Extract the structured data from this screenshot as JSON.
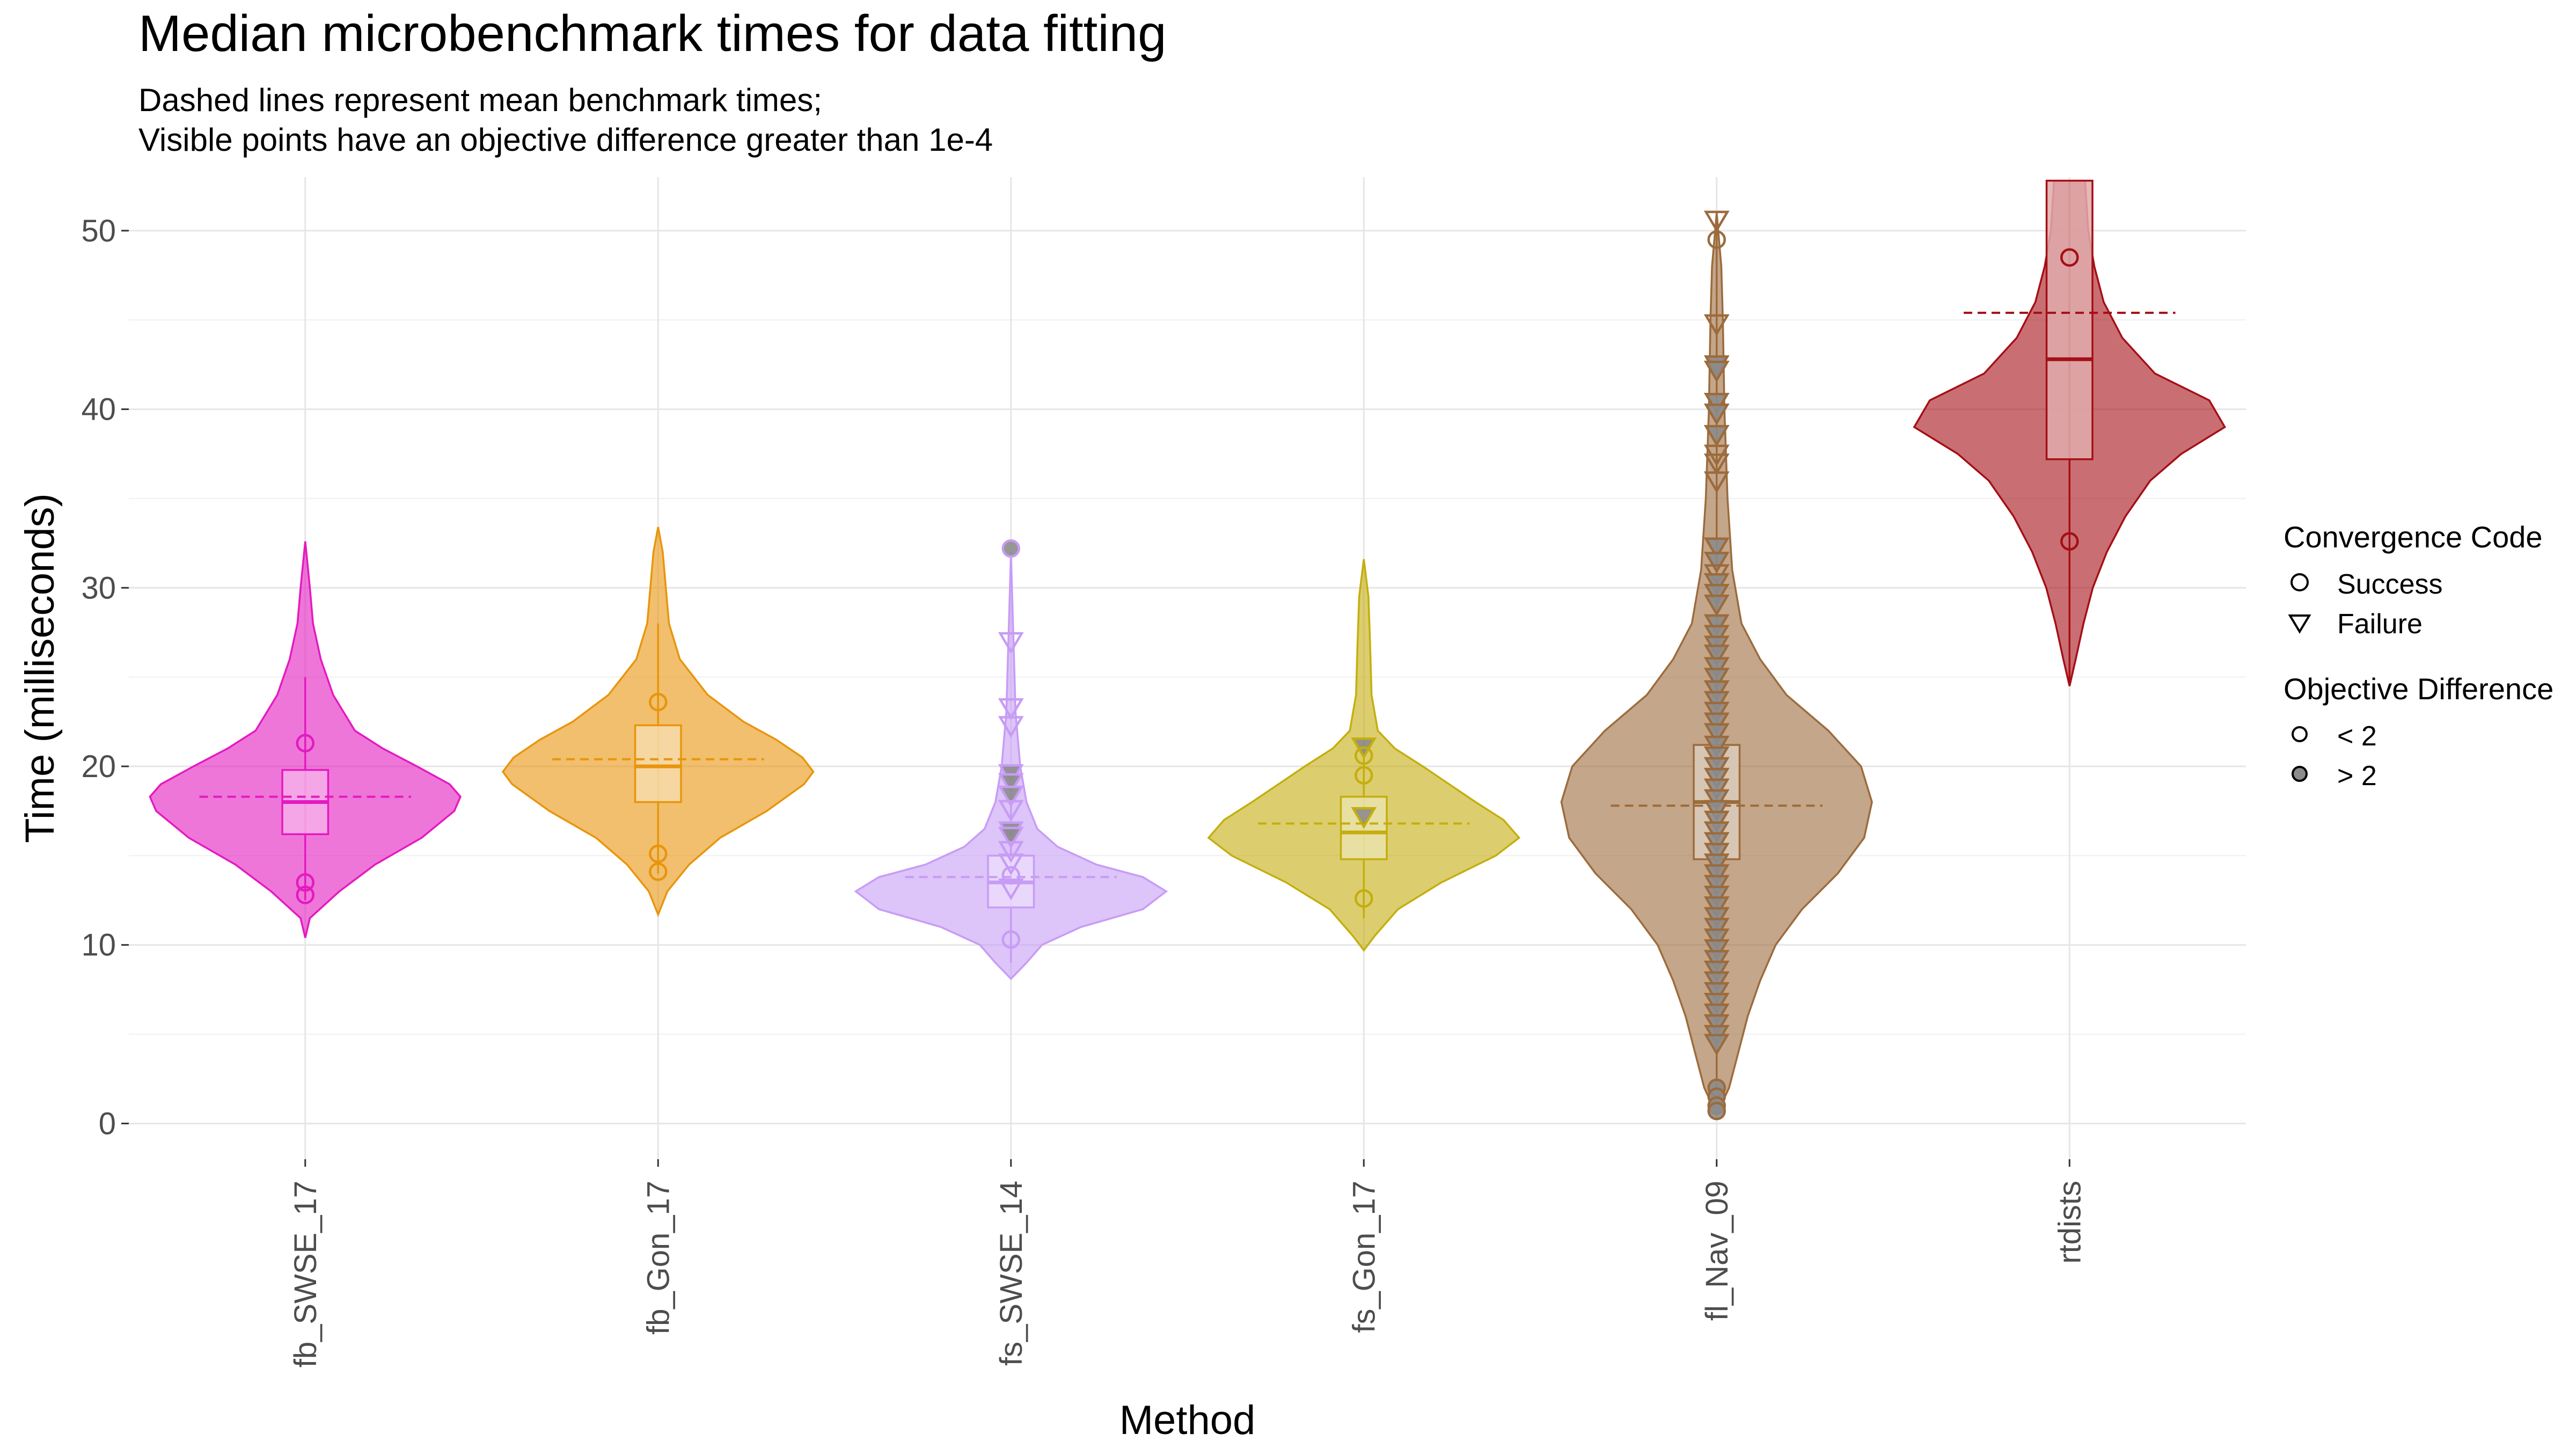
{
  "chart_data": {
    "type": "violin",
    "title": "Median microbenchmark times for data fitting",
    "subtitle_lines": [
      "Dashed lines represent mean benchmark times;",
      "Visible points have an objective difference greater than 1e-4"
    ],
    "xlabel": "Method",
    "ylabel": "Time (milliseconds)",
    "ylim": [
      -2,
      53
    ],
    "yticks": [
      0,
      10,
      20,
      30,
      40,
      50
    ],
    "grid": true,
    "legend_position": "right",
    "categories": [
      "fb_SWSE_17",
      "fb_Gon_17",
      "fs_SWSE_14",
      "fs_Gon_17",
      "fl_Nav_09",
      "rtdists"
    ],
    "colors": [
      "#E41AC0",
      "#E8950C",
      "#C79CF5",
      "#C4AE0E",
      "#9C6B3C",
      "#A50F15"
    ],
    "series": [
      {
        "name": "fb_SWSE_17",
        "median": 18.0,
        "q1": 16.2,
        "q3": 19.8,
        "whisker_low": 12.5,
        "whisker_high": 25.0,
        "mean": 18.3,
        "violin": [
          [
            10.4,
            0
          ],
          [
            11.5,
            0.03
          ],
          [
            13,
            0.22
          ],
          [
            14.5,
            0.45
          ],
          [
            16,
            0.75
          ],
          [
            17.5,
            0.96
          ],
          [
            18.3,
            1.0
          ],
          [
            19,
            0.93
          ],
          [
            20,
            0.72
          ],
          [
            21,
            0.5
          ],
          [
            22,
            0.32
          ],
          [
            24,
            0.18
          ],
          [
            26,
            0.1
          ],
          [
            28,
            0.05
          ],
          [
            30,
            0.03
          ],
          [
            32.6,
            0
          ]
        ],
        "points": [
          {
            "y": 21.3,
            "shape": "circle",
            "diff": "< 2"
          },
          {
            "y": 13.5,
            "shape": "circle",
            "diff": "< 2"
          },
          {
            "y": 12.8,
            "shape": "circle",
            "diff": "< 2"
          }
        ]
      },
      {
        "name": "fb_Gon_17",
        "median": 20.0,
        "q1": 18.0,
        "q3": 22.3,
        "whisker_low": 14.0,
        "whisker_high": 28.0,
        "mean": 20.4,
        "violin": [
          [
            11.7,
            0
          ],
          [
            13,
            0.06
          ],
          [
            14.5,
            0.2
          ],
          [
            16,
            0.4
          ],
          [
            17.5,
            0.7
          ],
          [
            19,
            0.94
          ],
          [
            19.7,
            1.0
          ],
          [
            20.5,
            0.93
          ],
          [
            21.5,
            0.76
          ],
          [
            22.5,
            0.55
          ],
          [
            24,
            0.32
          ],
          [
            26,
            0.14
          ],
          [
            28,
            0.07
          ],
          [
            30,
            0.05
          ],
          [
            32,
            0.03
          ],
          [
            33.4,
            0
          ]
        ],
        "points": [
          {
            "y": 23.6,
            "shape": "circle",
            "diff": "< 2"
          },
          {
            "y": 15.1,
            "shape": "circle",
            "diff": "< 2"
          },
          {
            "y": 14.1,
            "shape": "circle",
            "diff": "< 2"
          }
        ]
      },
      {
        "name": "fs_SWSE_14",
        "median": 13.5,
        "q1": 12.1,
        "q3": 15.0,
        "whisker_low": 9.0,
        "whisker_high": 19.5,
        "mean": 13.8,
        "violin": [
          [
            8.1,
            0
          ],
          [
            9,
            0.1
          ],
          [
            10,
            0.2
          ],
          [
            11,
            0.45
          ],
          [
            12,
            0.85
          ],
          [
            13,
            1.0
          ],
          [
            13.8,
            0.85
          ],
          [
            14.5,
            0.55
          ],
          [
            15.5,
            0.3
          ],
          [
            16.5,
            0.17
          ],
          [
            18,
            0.1
          ],
          [
            20,
            0.06
          ],
          [
            23,
            0.03
          ],
          [
            26,
            0.02
          ],
          [
            29,
            0.01
          ],
          [
            32,
            0
          ]
        ],
        "points": [
          {
            "y": 32.2,
            "shape": "circle",
            "diff": "> 2"
          },
          {
            "y": 27.0,
            "shape": "triangle",
            "diff": "< 2"
          },
          {
            "y": 23.3,
            "shape": "triangle",
            "diff": "< 2"
          },
          {
            "y": 22.3,
            "shape": "triangle",
            "diff": "< 2"
          },
          {
            "y": 19.6,
            "shape": "triangle",
            "diff": "> 2"
          },
          {
            "y": 19.1,
            "shape": "triangle",
            "diff": "> 2"
          },
          {
            "y": 18.4,
            "shape": "triangle",
            "diff": "> 2"
          },
          {
            "y": 17.6,
            "shape": "triangle",
            "diff": "< 2"
          },
          {
            "y": 16.4,
            "shape": "triangle",
            "diff": "> 2"
          },
          {
            "y": 16.1,
            "shape": "triangle",
            "diff": "> 2"
          },
          {
            "y": 15.3,
            "shape": "triangle",
            "diff": "< 2"
          },
          {
            "y": 14.6,
            "shape": "triangle",
            "diff": "< 2"
          },
          {
            "y": 13.9,
            "shape": "circle",
            "diff": "< 2"
          },
          {
            "y": 13.2,
            "shape": "triangle",
            "diff": "< 2"
          },
          {
            "y": 10.3,
            "shape": "circle",
            "diff": "< 2"
          }
        ]
      },
      {
        "name": "fs_Gon_17",
        "median": 16.3,
        "q1": 14.8,
        "q3": 18.3,
        "whisker_low": 11.5,
        "whisker_high": 21.5,
        "mean": 16.8,
        "violin": [
          [
            9.7,
            0
          ],
          [
            10.5,
            0.07
          ],
          [
            12,
            0.22
          ],
          [
            13.5,
            0.5
          ],
          [
            15,
            0.85
          ],
          [
            16,
            1.0
          ],
          [
            17,
            0.9
          ],
          [
            18,
            0.72
          ],
          [
            19,
            0.55
          ],
          [
            20,
            0.38
          ],
          [
            21,
            0.2
          ],
          [
            22,
            0.09
          ],
          [
            24,
            0.05
          ],
          [
            27,
            0.04
          ],
          [
            29.5,
            0.03
          ],
          [
            31.6,
            0
          ]
        ],
        "points": [
          {
            "y": 21.1,
            "shape": "triangle",
            "diff": "> 2"
          },
          {
            "y": 20.6,
            "shape": "circle",
            "diff": "< 2"
          },
          {
            "y": 19.5,
            "shape": "circle",
            "diff": "< 2"
          },
          {
            "y": 17.2,
            "shape": "triangle",
            "diff": "> 2"
          },
          {
            "y": 12.6,
            "shape": "circle",
            "diff": "< 2"
          }
        ]
      },
      {
        "name": "fl_Nav_09",
        "median": 18.0,
        "q1": 14.8,
        "q3": 21.2,
        "whisker_low": 0.8,
        "whisker_high": 50.5,
        "mean": 17.8,
        "violin": [
          [
            0.5,
            0
          ],
          [
            2,
            0.08
          ],
          [
            4,
            0.14
          ],
          [
            6,
            0.2
          ],
          [
            8,
            0.28
          ],
          [
            10,
            0.38
          ],
          [
            12,
            0.55
          ],
          [
            14,
            0.78
          ],
          [
            16,
            0.95
          ],
          [
            18,
            1.0
          ],
          [
            20,
            0.93
          ],
          [
            22,
            0.72
          ],
          [
            24,
            0.45
          ],
          [
            26,
            0.28
          ],
          [
            28,
            0.16
          ],
          [
            31,
            0.1
          ],
          [
            35,
            0.07
          ],
          [
            40,
            0.05
          ],
          [
            45,
            0.04
          ],
          [
            48,
            0.03
          ],
          [
            51,
            0
          ]
        ],
        "points": [
          {
            "y": 50.6,
            "shape": "triangle",
            "diff": "< 2"
          },
          {
            "y": 49.5,
            "shape": "circle",
            "diff": "< 2"
          },
          {
            "y": 44.8,
            "shape": "triangle",
            "diff": "< 2"
          },
          {
            "y": 42.5,
            "shape": "triangle",
            "diff": "> 2"
          },
          {
            "y": 42.2,
            "shape": "triangle",
            "diff": "> 2"
          },
          {
            "y": 40.4,
            "shape": "triangle",
            "diff": "> 2"
          },
          {
            "y": 39.8,
            "shape": "triangle",
            "diff": "> 2"
          },
          {
            "y": 38.6,
            "shape": "triangle",
            "diff": "> 2"
          },
          {
            "y": 37.5,
            "shape": "triangle",
            "diff": "< 2"
          },
          {
            "y": 37.0,
            "shape": "triangle",
            "diff": "< 2"
          },
          {
            "y": 36.0,
            "shape": "triangle",
            "diff": "< 2"
          },
          {
            "y": 32.3,
            "shape": "triangle",
            "diff": "> 2"
          },
          {
            "y": 31.5,
            "shape": "triangle",
            "diff": "> 2"
          },
          {
            "y": 30.8,
            "shape": "triangle",
            "diff": "< 2"
          },
          {
            "y": 30.3,
            "shape": "triangle",
            "diff": "> 2"
          },
          {
            "y": 29.7,
            "shape": "triangle",
            "diff": "> 2"
          },
          {
            "y": 29.1,
            "shape": "triangle",
            "diff": "> 2"
          },
          {
            "y": 28.0,
            "shape": "triangle",
            "diff": "> 2"
          },
          {
            "y": 27.4,
            "shape": "triangle",
            "diff": "> 2"
          },
          {
            "y": 26.8,
            "shape": "triangle",
            "diff": "> 2"
          },
          {
            "y": 26.3,
            "shape": "triangle",
            "diff": "> 2"
          },
          {
            "y": 25.6,
            "shape": "triangle",
            "diff": "> 2"
          },
          {
            "y": 25.0,
            "shape": "triangle",
            "diff": "> 2"
          },
          {
            "y": 24.3,
            "shape": "triangle",
            "diff": "> 2"
          },
          {
            "y": 23.7,
            "shape": "triangle",
            "diff": "> 2"
          },
          {
            "y": 23.1,
            "shape": "triangle",
            "diff": "> 2"
          },
          {
            "y": 22.5,
            "shape": "triangle",
            "diff": "> 2"
          },
          {
            "y": 21.9,
            "shape": "triangle",
            "diff": "> 2"
          },
          {
            "y": 21.2,
            "shape": "triangle",
            "diff": "> 2"
          },
          {
            "y": 20.6,
            "shape": "triangle",
            "diff": "> 2"
          },
          {
            "y": 20.0,
            "shape": "triangle",
            "diff": "> 2"
          },
          {
            "y": 19.4,
            "shape": "triangle",
            "diff": "> 2"
          },
          {
            "y": 18.8,
            "shape": "triangle",
            "diff": "> 2"
          },
          {
            "y": 18.2,
            "shape": "triangle",
            "diff": "> 2"
          },
          {
            "y": 17.6,
            "shape": "triangle",
            "diff": "> 2"
          },
          {
            "y": 17.0,
            "shape": "triangle",
            "diff": "> 2"
          },
          {
            "y": 16.4,
            "shape": "triangle",
            "diff": "> 2"
          },
          {
            "y": 15.8,
            "shape": "triangle",
            "diff": "> 2"
          },
          {
            "y": 15.2,
            "shape": "triangle",
            "diff": "> 2"
          },
          {
            "y": 14.6,
            "shape": "triangle",
            "diff": "> 2"
          },
          {
            "y": 14.0,
            "shape": "triangle",
            "diff": "> 2"
          },
          {
            "y": 13.4,
            "shape": "triangle",
            "diff": "> 2"
          },
          {
            "y": 12.8,
            "shape": "triangle",
            "diff": "> 2"
          },
          {
            "y": 12.2,
            "shape": "triangle",
            "diff": "> 2"
          },
          {
            "y": 11.6,
            "shape": "triangle",
            "diff": "> 2"
          },
          {
            "y": 11.0,
            "shape": "triangle",
            "diff": "> 2"
          },
          {
            "y": 10.4,
            "shape": "triangle",
            "diff": "> 2"
          },
          {
            "y": 9.8,
            "shape": "triangle",
            "diff": "> 2"
          },
          {
            "y": 9.2,
            "shape": "triangle",
            "diff": "> 2"
          },
          {
            "y": 8.6,
            "shape": "triangle",
            "diff": "> 2"
          },
          {
            "y": 8.0,
            "shape": "triangle",
            "diff": "> 2"
          },
          {
            "y": 7.4,
            "shape": "triangle",
            "diff": "> 2"
          },
          {
            "y": 6.8,
            "shape": "triangle",
            "diff": "> 2"
          },
          {
            "y": 6.2,
            "shape": "triangle",
            "diff": "> 2"
          },
          {
            "y": 5.6,
            "shape": "triangle",
            "diff": "> 2"
          },
          {
            "y": 5.0,
            "shape": "triangle",
            "diff": "> 2"
          },
          {
            "y": 4.5,
            "shape": "triangle",
            "diff": "> 2"
          },
          {
            "y": 2.0,
            "shape": "circle",
            "diff": "> 2"
          },
          {
            "y": 1.5,
            "shape": "circle",
            "diff": "> 2"
          },
          {
            "y": 1.0,
            "shape": "circle",
            "diff": "> 2"
          },
          {
            "y": 0.7,
            "shape": "circle",
            "diff": "> 2"
          }
        ]
      },
      {
        "name": "rtdists",
        "median": 42.8,
        "q1": 37.2,
        "q3": 52.8,
        "whisker_low": 24.5,
        "whisker_high": 52.8,
        "mean": 45.4,
        "violin": [
          [
            24.5,
            0
          ],
          [
            26,
            0.04
          ],
          [
            28,
            0.09
          ],
          [
            30,
            0.15
          ],
          [
            32,
            0.24
          ],
          [
            34,
            0.36
          ],
          [
            36,
            0.52
          ],
          [
            37.5,
            0.72
          ],
          [
            39,
            1.0
          ],
          [
            40.5,
            0.9
          ],
          [
            42,
            0.55
          ],
          [
            44,
            0.34
          ],
          [
            46,
            0.22
          ],
          [
            48,
            0.16
          ],
          [
            50,
            0.12
          ],
          [
            52.8,
            0.1
          ]
        ],
        "points": [
          {
            "y": 48.5,
            "shape": "circle",
            "diff": "< 2"
          },
          {
            "y": 32.6,
            "shape": "circle",
            "diff": "< 2"
          }
        ]
      }
    ],
    "legend": {
      "convergence_title": "Convergence Code",
      "convergence_items": [
        {
          "label": "Success",
          "shape": "circle"
        },
        {
          "label": "Failure",
          "shape": "triangle"
        }
      ],
      "objdiff_title": "Objective Difference",
      "objdiff_items": [
        {
          "label": "< 2",
          "fill": "none"
        },
        {
          "label": "> 2",
          "fill": "gray"
        }
      ]
    }
  }
}
